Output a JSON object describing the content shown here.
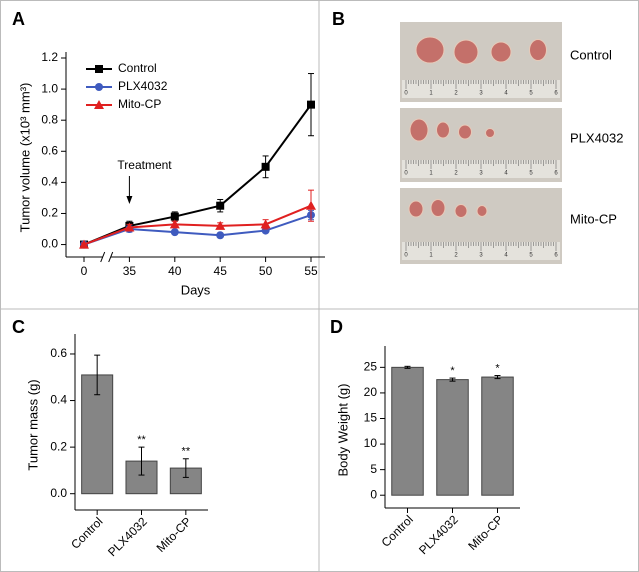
{
  "chart_data": [
    {
      "type": "line",
      "panel": "A",
      "xlabel": "Days",
      "ylabel": "Tumor volume (x10³ mm³)",
      "categories": [
        "0",
        "35",
        "40",
        "45",
        "50",
        "55"
      ],
      "series": [
        {
          "name": "Control",
          "color": "#000000",
          "marker": "square",
          "values": [
            0,
            0.12,
            0.18,
            0.25,
            0.5,
            0.9
          ],
          "errors": [
            0.01,
            0.03,
            0.03,
            0.04,
            0.07,
            0.2
          ]
        },
        {
          "name": "PLX4032",
          "color": "#3f5bbf",
          "marker": "circle",
          "values": [
            0,
            0.1,
            0.08,
            0.06,
            0.09,
            0.19
          ],
          "errors": [
            0.01,
            0.02,
            0.01,
            0.01,
            0.01,
            0.03
          ]
        },
        {
          "name": "Mito-CP",
          "color": "#e02020",
          "marker": "triangle",
          "values": [
            0,
            0.11,
            0.13,
            0.12,
            0.13,
            0.25
          ],
          "errors": [
            0.01,
            0.02,
            0.02,
            0.02,
            0.03,
            0.1
          ]
        }
      ],
      "ylim": [
        -0.08,
        1.2
      ],
      "yticks": [
        {
          "value": 0,
          "label": "0.0"
        },
        0.2,
        0.4,
        0.6,
        0.8,
        {
          "value": 1,
          "label": "1.0"
        },
        1.2
      ],
      "axis_break": true,
      "annotation": {
        "text": "Treatment",
        "category": "35"
      }
    },
    {
      "type": "bar",
      "panel": "C",
      "ylabel": "Tumor mass (g)",
      "color": "#858585",
      "categories": [
        "Control",
        "PLX4032",
        "Mito-CP"
      ],
      "values": [
        0.51,
        0.14,
        0.11
      ],
      "errors": [
        0.085,
        0.06,
        0.04
      ],
      "significance": [
        null,
        "**",
        "**"
      ],
      "ylim": [
        -0.07,
        0.66
      ],
      "yticks": [
        {
          "value": 0,
          "label": "0.0"
        },
        0.2,
        0.4,
        0.6
      ]
    },
    {
      "type": "bar",
      "panel": "D",
      "ylabel": "Body Weight (g)",
      "color": "#858585",
      "categories": [
        "Control",
        "PLX4032",
        "Mito-CP"
      ],
      "values": [
        25.0,
        22.6,
        23.1
      ],
      "errors": [
        0.2,
        0.3,
        0.3
      ],
      "significance": [
        null,
        "*",
        "*"
      ],
      "ylim": [
        -2.5,
        28
      ],
      "yticks": [
        0,
        5,
        10,
        15,
        20,
        25
      ]
    }
  ],
  "photo_panel": {
    "panel": "B",
    "rows": [
      "Control",
      "PLX4032",
      "Mito-CP"
    ],
    "ruler": [
      "0",
      "1",
      "2",
      "3",
      "4",
      "5",
      "6"
    ]
  }
}
